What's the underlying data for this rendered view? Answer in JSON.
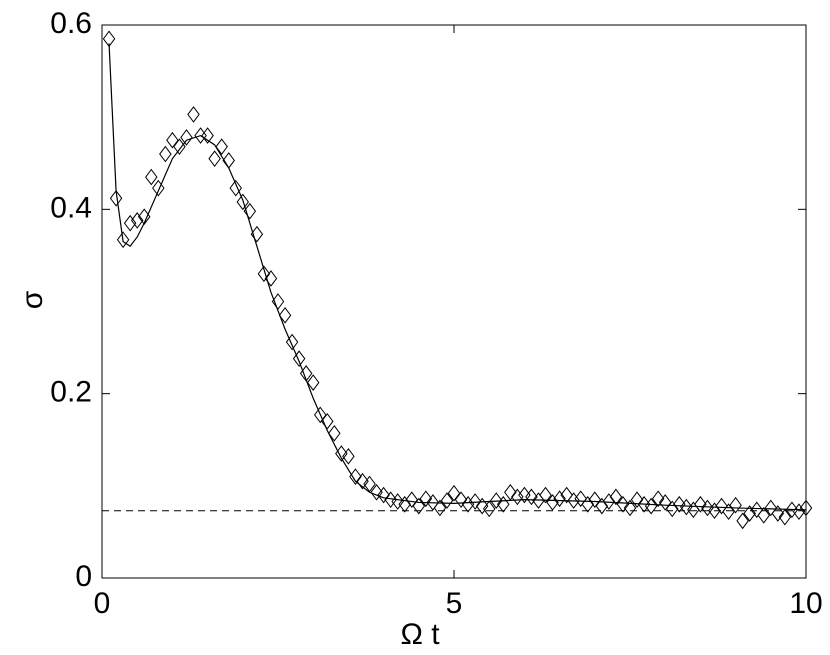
{
  "chart_data": {
    "type": "line",
    "xlabel": "Ω t",
    "ylabel": "σ",
    "xlim": [
      0,
      10
    ],
    "ylim": [
      0,
      0.6
    ],
    "xticks": [
      0,
      5,
      10
    ],
    "yticks": [
      0,
      0.2,
      0.4,
      0.6
    ],
    "grid": false,
    "series": [
      {
        "style": "diamond",
        "color": "#000000",
        "x": [
          0.1,
          0.2,
          0.3,
          0.4,
          0.5,
          0.6,
          0.7,
          0.8,
          0.9,
          1.0,
          1.1,
          1.2,
          1.3,
          1.4,
          1.5,
          1.6,
          1.7,
          1.8,
          1.9,
          2.0,
          2.1,
          2.2,
          2.3,
          2.4,
          2.5,
          2.6,
          2.7,
          2.8,
          2.9,
          3.0,
          3.1,
          3.2,
          3.3,
          3.4,
          3.5,
          3.6,
          3.7,
          3.8,
          3.9,
          4.0,
          4.1,
          4.2,
          4.3,
          4.4,
          4.5,
          4.6,
          4.7,
          4.8,
          4.9,
          5.0,
          5.1,
          5.2,
          5.3,
          5.4,
          5.5,
          5.6,
          5.7,
          5.8,
          5.9,
          6.0,
          6.1,
          6.2,
          6.3,
          6.4,
          6.5,
          6.6,
          6.7,
          6.8,
          6.9,
          7.0,
          7.1,
          7.2,
          7.3,
          7.4,
          7.5,
          7.6,
          7.7,
          7.8,
          7.9,
          8.0,
          8.1,
          8.2,
          8.3,
          8.4,
          8.5,
          8.6,
          8.7,
          8.8,
          8.9,
          9.0,
          9.1,
          9.2,
          9.3,
          9.4,
          9.5,
          9.6,
          9.7,
          9.8,
          9.9,
          10.0
        ],
        "values": [
          0.585,
          0.412,
          0.367,
          0.385,
          0.388,
          0.392,
          0.435,
          0.423,
          0.46,
          0.475,
          0.468,
          0.478,
          0.503,
          0.48,
          0.48,
          0.455,
          0.468,
          0.453,
          0.423,
          0.408,
          0.398,
          0.373,
          0.33,
          0.325,
          0.3,
          0.285,
          0.256,
          0.238,
          0.222,
          0.212,
          0.177,
          0.17,
          0.157,
          0.135,
          0.132,
          0.11,
          0.105,
          0.102,
          0.093,
          0.09,
          0.085,
          0.083,
          0.08,
          0.085,
          0.078,
          0.086,
          0.082,
          0.076,
          0.084,
          0.092,
          0.085,
          0.08,
          0.083,
          0.078,
          0.075,
          0.084,
          0.08,
          0.093,
          0.088,
          0.09,
          0.088,
          0.084,
          0.09,
          0.082,
          0.086,
          0.09,
          0.084,
          0.086,
          0.08,
          0.085,
          0.078,
          0.083,
          0.088,
          0.08,
          0.076,
          0.085,
          0.08,
          0.078,
          0.086,
          0.082,
          0.075,
          0.08,
          0.077,
          0.074,
          0.08,
          0.076,
          0.073,
          0.078,
          0.072,
          0.079,
          0.062,
          0.07,
          0.074,
          0.068,
          0.076,
          0.07,
          0.066,
          0.074,
          0.072,
          0.076
        ]
      },
      {
        "style": "solid",
        "color": "#000000",
        "x": [
          0.1,
          0.2,
          0.3,
          0.4,
          0.5,
          0.6,
          0.8,
          1.0,
          1.2,
          1.4,
          1.6,
          1.8,
          2.0,
          2.2,
          2.4,
          2.6,
          2.8,
          3.0,
          3.2,
          3.4,
          3.6,
          3.8,
          4.0,
          4.5,
          5,
          5.5,
          6,
          7,
          8,
          9,
          10
        ],
        "values": [
          0.58,
          0.42,
          0.365,
          0.36,
          0.37,
          0.385,
          0.42,
          0.455,
          0.475,
          0.48,
          0.47,
          0.445,
          0.41,
          0.36,
          0.31,
          0.27,
          0.235,
          0.195,
          0.16,
          0.13,
          0.105,
          0.093,
          0.087,
          0.082,
          0.081,
          0.083,
          0.085,
          0.083,
          0.079,
          0.076,
          0.074
        ]
      }
    ],
    "reference_line": {
      "y": 0.073,
      "style": "dashed",
      "color": "#000000"
    }
  }
}
